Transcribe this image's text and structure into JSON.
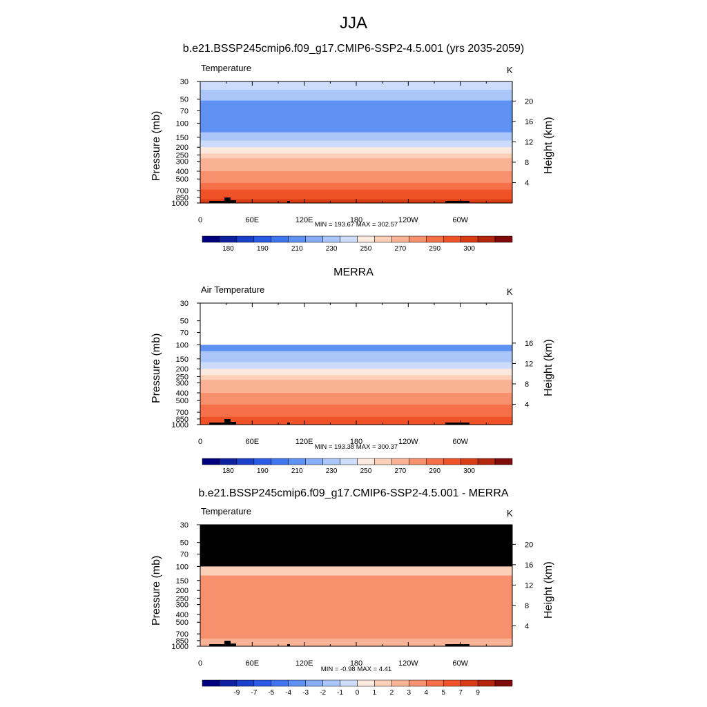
{
  "title": "JJA",
  "colors": {
    "temperature_palette": [
      "#00007f",
      "#0c20a0",
      "#1a3fc8",
      "#2a5ae6",
      "#3f76f0",
      "#5f91f3",
      "#86adf5",
      "#aac6f8",
      "#cddcfa",
      "#fce9de",
      "#fbcfb8",
      "#f9b294",
      "#f7916d",
      "#f57049",
      "#f05227",
      "#d93b15",
      "#b4250d",
      "#7e0a0a"
    ],
    "difference_palette": [
      "#00007f",
      "#0c20a0",
      "#1a3fc8",
      "#2a5ae6",
      "#3f76f0",
      "#5f91f3",
      "#86adf5",
      "#aac6f8",
      "#cddcfa",
      "#fce9de",
      "#fbcfb8",
      "#f9b294",
      "#f7916d",
      "#f57049",
      "#f05227",
      "#d93b15",
      "#b4250d",
      "#7e0a0a"
    ],
    "missing": "#000000"
  },
  "chart_data": [
    {
      "type": "heatmap",
      "title": "b.e21.BSSP245cmip6.f09_g17.CMIP6-SSP2-4.5.001 (yrs 2035-2059)",
      "var_label": "Temperature",
      "units": "K",
      "xlabel": "",
      "ylabel": "Pressure (mb)",
      "ylabel_right": "Height (km)",
      "x_ticks": [
        "0",
        "60E",
        "120E",
        "180",
        "120W",
        "60W"
      ],
      "xlim": [
        0,
        360
      ],
      "y_ticks": [
        "30",
        "50",
        "70",
        "100",
        "150",
        "200",
        "250",
        "300",
        "400",
        "500",
        "700",
        "850",
        "1000"
      ],
      "ylim": [
        1000,
        30
      ],
      "y_scale": "log",
      "height_ticks": [
        "20",
        "16",
        "12",
        "8",
        "4"
      ],
      "minmax": "MIN = 193.67  MAX = 302.57",
      "colorbar_labels": [
        "180",
        "190",
        "210",
        "230",
        "250",
        "270",
        "290",
        "300"
      ],
      "bands": [
        {
          "p": [
            30,
            38
          ],
          "value": 220
        },
        {
          "p": [
            38,
            52
          ],
          "value": 210
        },
        {
          "p": [
            52,
            130
          ],
          "value": 200
        },
        {
          "p": [
            130,
            165
          ],
          "value": 210
        },
        {
          "p": [
            165,
            200
          ],
          "value": 220
        },
        {
          "p": [
            200,
            240
          ],
          "value": 230
        },
        {
          "p": [
            240,
            275
          ],
          "value": 240
        },
        {
          "p": [
            275,
            330
          ],
          "value": 250
        },
        {
          "p": [
            330,
            400
          ],
          "value": 255
        },
        {
          "p": [
            400,
            470
          ],
          "value": 260
        },
        {
          "p": [
            470,
            560
          ],
          "value": 265
        },
        {
          "p": [
            560,
            680
          ],
          "value": 270
        },
        {
          "p": [
            680,
            800
          ],
          "value": 280
        },
        {
          "p": [
            800,
            900
          ],
          "value": 285
        },
        {
          "p": [
            900,
            1000
          ],
          "value": 290
        }
      ]
    },
    {
      "type": "heatmap",
      "title": "MERRA",
      "var_label": "Air Temperature",
      "units": "K",
      "xlabel": "",
      "ylabel": "Pressure (mb)",
      "ylabel_right": "Height (km)",
      "x_ticks": [
        "0",
        "60E",
        "120E",
        "180",
        "120W",
        "60W"
      ],
      "xlim": [
        0,
        360
      ],
      "y_ticks": [
        "30",
        "50",
        "70",
        "100",
        "150",
        "200",
        "250",
        "300",
        "400",
        "500",
        "700",
        "850",
        "1000"
      ],
      "ylim": [
        1000,
        30
      ],
      "y_scale": "log",
      "height_ticks": [
        "16",
        "12",
        "8",
        "4"
      ],
      "minmax": "MIN = 193.38  MAX = 300.37",
      "colorbar_labels": [
        "180",
        "190",
        "210",
        "230",
        "250",
        "270",
        "290",
        "300"
      ],
      "bands": [
        {
          "p": [
            100,
            120
          ],
          "value": 200
        },
        {
          "p": [
            120,
            165
          ],
          "value": 210
        },
        {
          "p": [
            165,
            200
          ],
          "value": 220
        },
        {
          "p": [
            200,
            240
          ],
          "value": 230
        },
        {
          "p": [
            240,
            275
          ],
          "value": 240
        },
        {
          "p": [
            275,
            330
          ],
          "value": 250
        },
        {
          "p": [
            330,
            400
          ],
          "value": 255
        },
        {
          "p": [
            400,
            470
          ],
          "value": 260
        },
        {
          "p": [
            470,
            560
          ],
          "value": 265
        },
        {
          "p": [
            560,
            680
          ],
          "value": 270
        },
        {
          "p": [
            680,
            800
          ],
          "value": 275
        },
        {
          "p": [
            800,
            900
          ],
          "value": 280
        },
        {
          "p": [
            900,
            1000
          ],
          "value": 285
        }
      ]
    },
    {
      "type": "heatmap",
      "title": "b.e21.BSSP245cmip6.f09_g17.CMIP6-SSP2-4.5.001 - MERRA",
      "var_label": "Temperature",
      "units": "K",
      "xlabel": "",
      "ylabel": "Pressure (mb)",
      "ylabel_right": "Height (km)",
      "x_ticks": [
        "0",
        "60E",
        "120E",
        "180",
        "120W",
        "60W"
      ],
      "xlim": [
        0,
        360
      ],
      "y_ticks": [
        "30",
        "50",
        "70",
        "100",
        "150",
        "200",
        "250",
        "300",
        "400",
        "500",
        "700",
        "850",
        "1000"
      ],
      "ylim": [
        1000,
        30
      ],
      "y_scale": "log",
      "height_ticks": [
        "20",
        "16",
        "12",
        "8",
        "4"
      ],
      "minmax": "MIN =  -0.98  MAX =   4.41",
      "colorbar_labels": [
        "-9",
        "-7",
        "-5",
        "-4",
        "-3",
        "-2",
        "-1",
        "0",
        "1",
        "2",
        "3",
        "4",
        "5",
        "7",
        "9"
      ],
      "bands": [
        {
          "p": [
            30,
            100
          ],
          "value": null
        },
        {
          "p": [
            100,
            130
          ],
          "value": 1.5
        },
        {
          "p": [
            130,
            600
          ],
          "value": 3.5
        },
        {
          "p": [
            600,
            800
          ],
          "value": 3.0
        },
        {
          "p": [
            800,
            1000
          ],
          "value": 2.5
        }
      ]
    }
  ]
}
